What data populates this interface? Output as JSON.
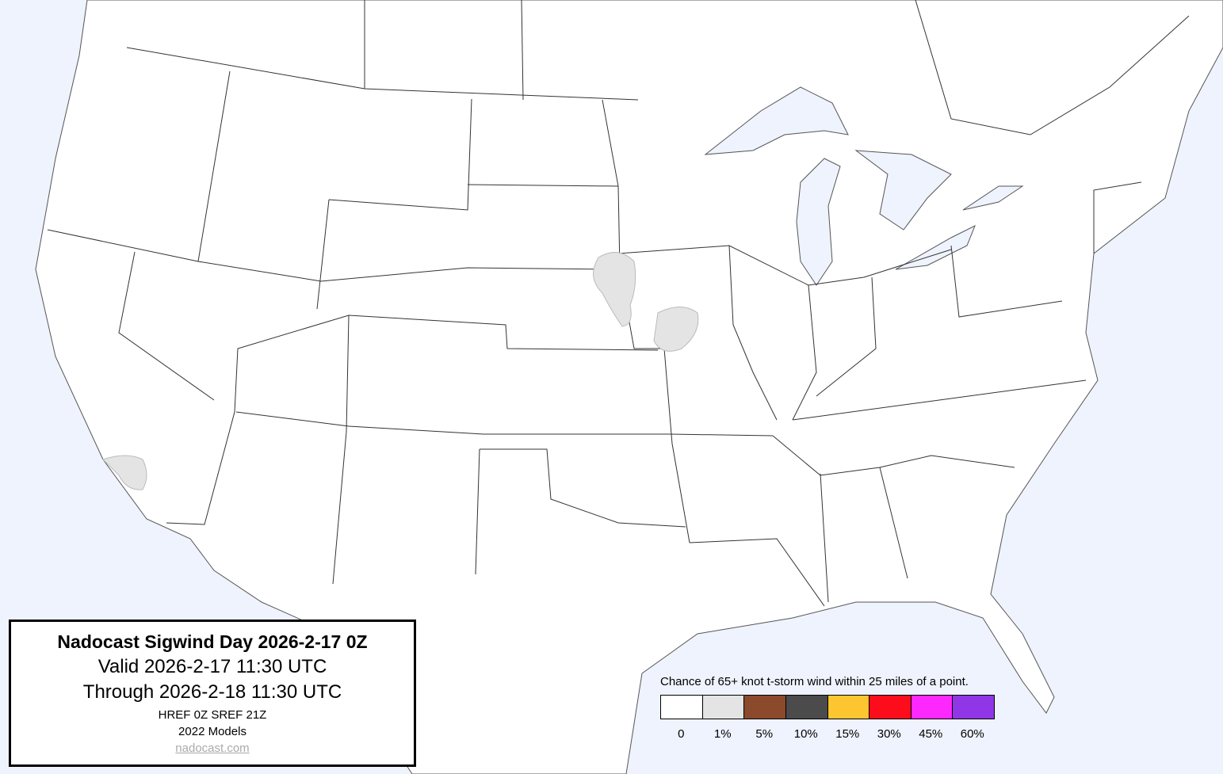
{
  "colors": {
    "ocean": "#eef3fd",
    "land": "#ffffff",
    "border": "#333333",
    "probability_area": "#e4e4e4"
  },
  "title_box": {
    "title": "Nadocast Sigwind Day 2026-2-17 0Z",
    "valid": "Valid 2026-2-17 11:30 UTC",
    "through": "Through 2026-2-18 11:30 UTC",
    "models_run": "HREF 0Z SREF 21Z",
    "models_version": "2022 Models",
    "link": "nadocast.com"
  },
  "legend": {
    "title": "Chance of 65+ knot t-storm wind within 25 miles of a point.",
    "items": [
      {
        "label": "0",
        "color": "#ffffff"
      },
      {
        "label": "1%",
        "color": "#e4e4e4"
      },
      {
        "label": "5%",
        "color": "#8b4a2b"
      },
      {
        "label": "10%",
        "color": "#4b4b4b"
      },
      {
        "label": "15%",
        "color": "#fdc52f"
      },
      {
        "label": "30%",
        "color": "#fd0d1b"
      },
      {
        "label": "45%",
        "color": "#fd28fd"
      },
      {
        "label": "60%",
        "color": "#9136e6"
      }
    ]
  },
  "probability_areas": [
    {
      "region": "Iowa-Nebraska border",
      "level": "1%"
    },
    {
      "region": "Southwest Iowa / Northwest Missouri",
      "level": "1%"
    },
    {
      "region": "Southern California coast",
      "level": "1%"
    }
  ]
}
